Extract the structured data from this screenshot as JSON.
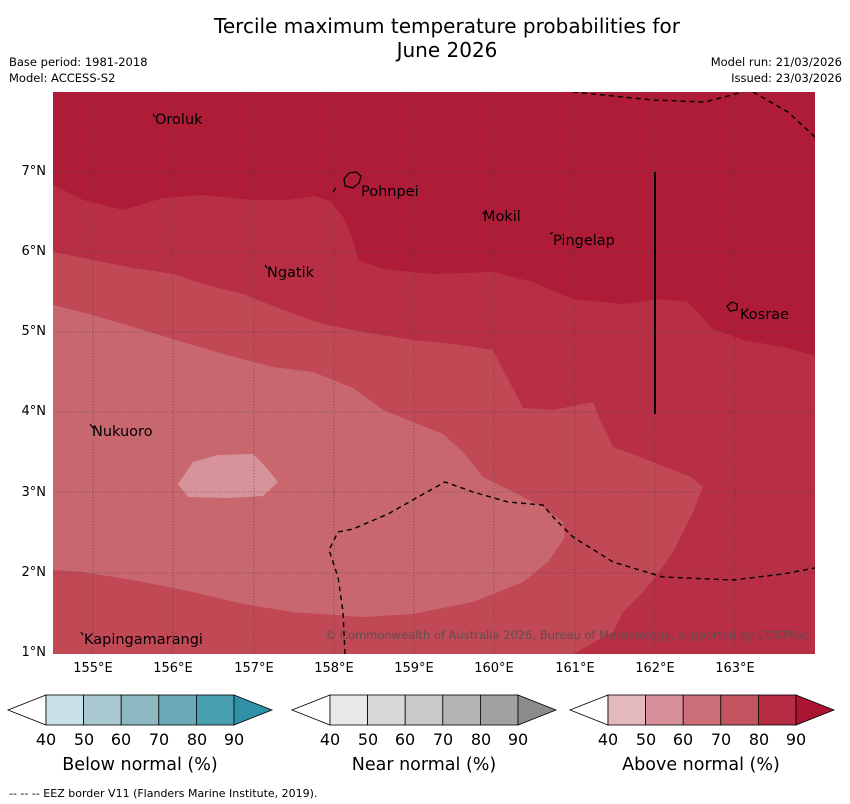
{
  "title_line1": "Tercile maximum temperature probabilities for",
  "title_line2": "June 2026",
  "base_period": "Base period: 1981-2018",
  "model": "Model: ACCESS-S2",
  "model_run": "Model run: 21/03/2026",
  "issued": "Issued: 23/03/2026",
  "lat_labels": [
    "7°N",
    "6°N",
    "5°N",
    "4°N",
    "3°N",
    "2°N",
    "1°N"
  ],
  "lon_labels": [
    "155°E",
    "156°E",
    "157°E",
    "158°E",
    "159°E",
    "160°E",
    "161°E",
    "162°E",
    "163°E"
  ],
  "places": {
    "oroluk": "Oroluk",
    "pohnpei": "Pohnpei",
    "mokil": "Mokil",
    "pingelap": "Pingelap",
    "ngatik": "Ngatik",
    "kosrae": "Kosrae",
    "nukuoro": "Nukuoro",
    "kapingamarangi": "Kapingamarangi"
  },
  "copyright": "© Commonwealth of Australia 2026, Bureau of Meteorology, supported by COSPPac",
  "colorbars": [
    {
      "title": "Below normal (%)",
      "ticks": [
        "40",
        "50",
        "60",
        "70",
        "80",
        "90"
      ],
      "colors": [
        "#ffffff",
        "#c8e1e8",
        "#a8c9cf",
        "#8db9c3",
        "#6aaab8",
        "#4a9fb1",
        "#2f91a8"
      ]
    },
    {
      "title": "Near normal (%)",
      "ticks": [
        "40",
        "50",
        "60",
        "70",
        "80",
        "90"
      ],
      "colors": [
        "#ffffff",
        "#e8e8e8",
        "#d8d8d8",
        "#c9c9c9",
        "#b5b5b5",
        "#a1a1a1",
        "#8b8b8b"
      ]
    },
    {
      "title": "Above normal (%)",
      "ticks": [
        "40",
        "50",
        "60",
        "70",
        "80",
        "90"
      ],
      "colors": [
        "#ffffff",
        "#e3b8bf",
        "#d78f99",
        "#cc6f79",
        "#c3545f",
        "#b62d43",
        "#ab1532"
      ]
    }
  ],
  "eez_note": "--  --  -- EEZ border V11 (Flanders Marine Institute, 2019).",
  "map_colors": {
    "above_90": "#ae1c38",
    "above_80": "#b82f45",
    "above_70": "#c14855",
    "above_60": "#c9676f",
    "above_50": "#d6949a"
  }
}
